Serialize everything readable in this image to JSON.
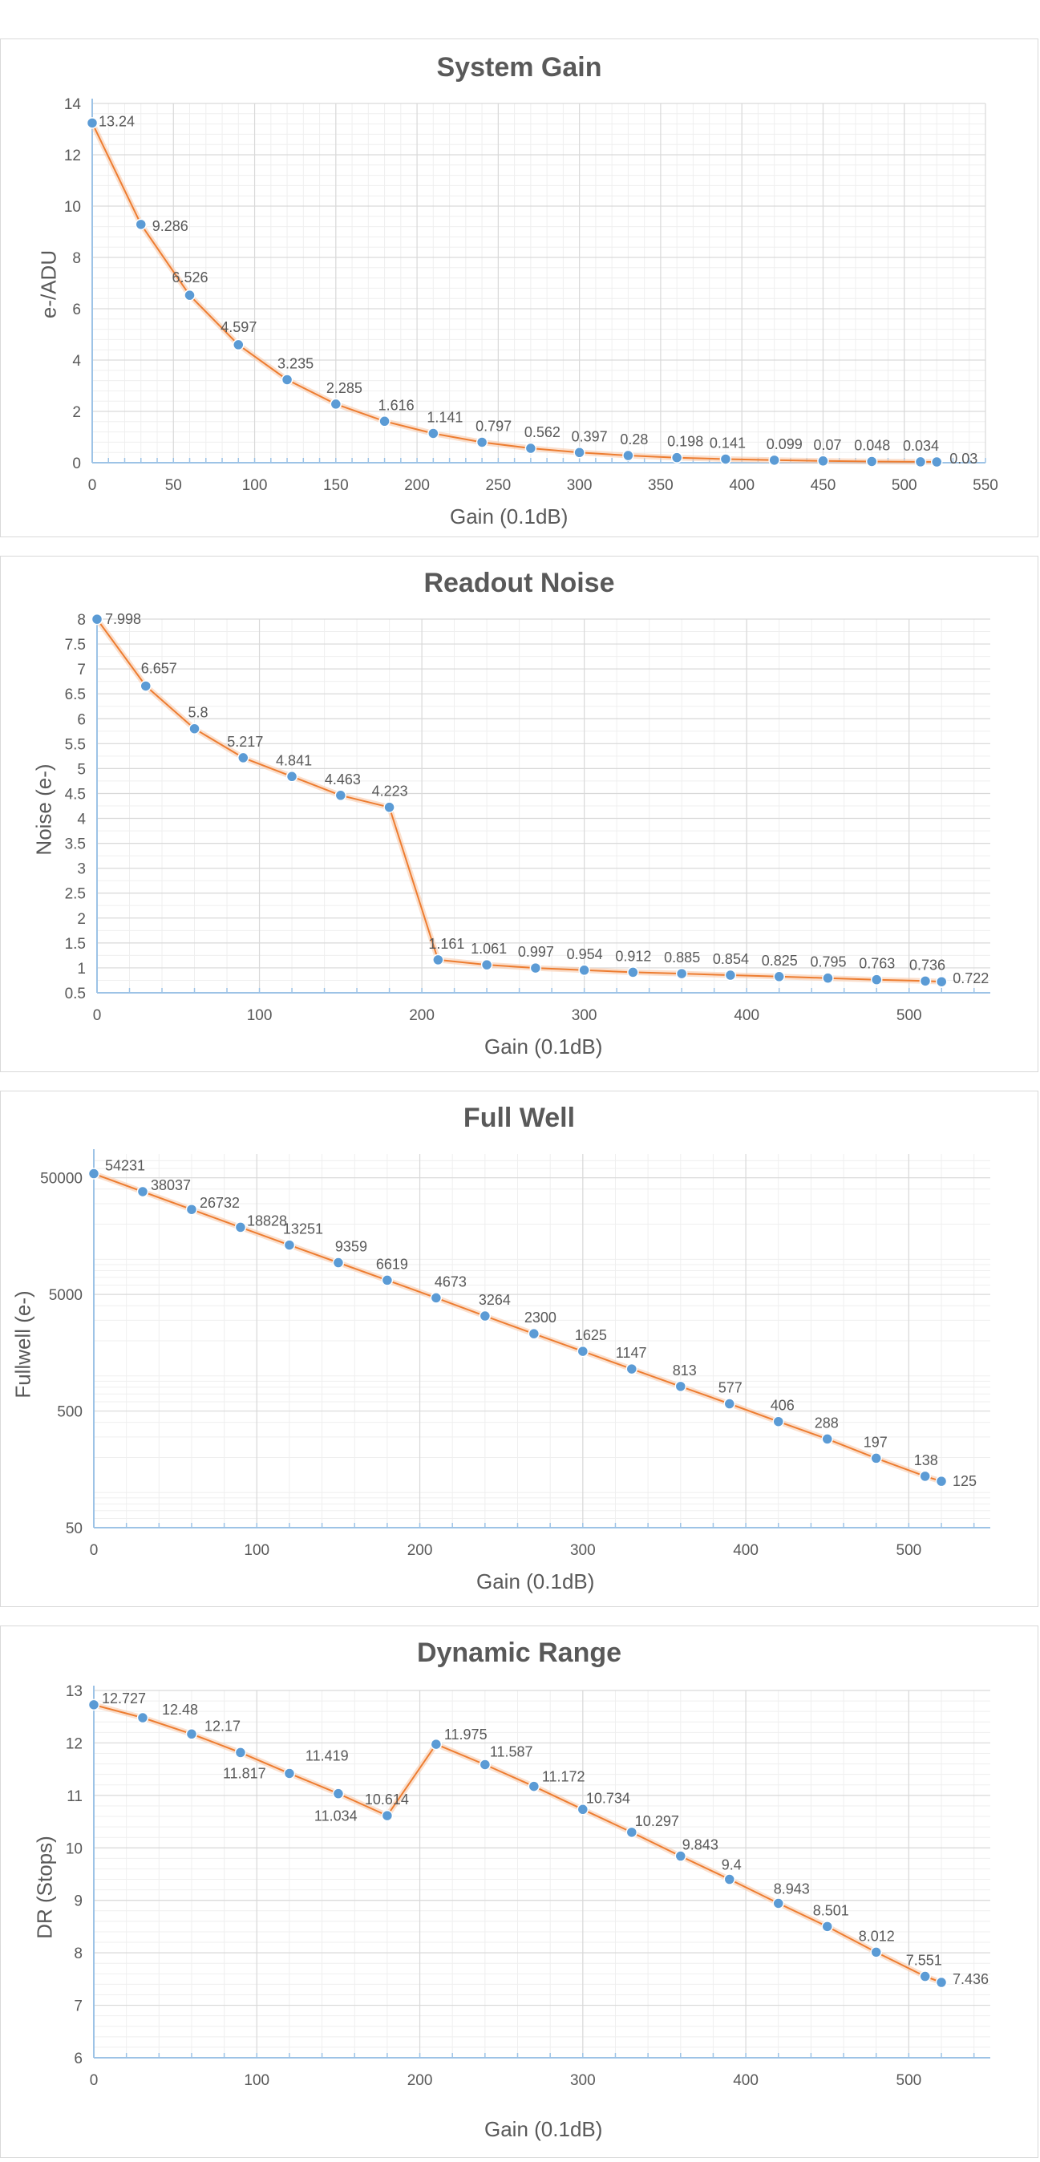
{
  "chart_data": [
    {
      "type": "line",
      "title": "System Gain",
      "xlabel": "Gain (0.1dB)",
      "ylabel": "e-/ADU",
      "xlim": [
        0,
        550
      ],
      "ylim": [
        0,
        14
      ],
      "xticks": [
        0,
        50,
        100,
        150,
        200,
        250,
        300,
        350,
        400,
        450,
        500,
        550
      ],
      "yticks": [
        0,
        2,
        4,
        6,
        8,
        10,
        12,
        14
      ],
      "x": [
        0,
        30,
        60,
        90,
        120,
        150,
        180,
        210,
        240,
        270,
        300,
        330,
        360,
        390,
        420,
        450,
        480,
        510,
        520
      ],
      "y": [
        13.24,
        9.286,
        6.526,
        4.597,
        3.235,
        2.285,
        1.616,
        1.141,
        0.797,
        0.562,
        0.397,
        0.28,
        0.198,
        0.141,
        0.099,
        0.07,
        0.048,
        0.034,
        0.03
      ],
      "labels": [
        "13.24",
        "9.286",
        "6.526",
        "4.597",
        "3.235",
        "2.285",
        "1.616",
        "1.141",
        "0.797",
        "0.562",
        "0.397",
        "0.28",
        "0.198",
        "0.141",
        "0.099",
        "0.07",
        "0.048",
        "0.034",
        "0.03"
      ],
      "grid": true
    },
    {
      "type": "line",
      "title": "Readout Noise",
      "xlabel": "Gain (0.1dB)",
      "ylabel": "Noise (e-)",
      "xlim": [
        0,
        550
      ],
      "ylim": [
        0.5,
        8
      ],
      "xticks": [
        0,
        100,
        200,
        300,
        400,
        500
      ],
      "yticks": [
        0.5,
        1,
        1.5,
        2,
        2.5,
        3,
        3.5,
        4,
        4.5,
        5,
        5.5,
        6,
        6.5,
        7,
        7.5,
        8
      ],
      "x": [
        0,
        30,
        60,
        90,
        120,
        150,
        180,
        210,
        240,
        270,
        300,
        330,
        360,
        390,
        420,
        450,
        480,
        510,
        520
      ],
      "y": [
        7.998,
        6.657,
        5.8,
        5.217,
        4.841,
        4.463,
        4.223,
        1.161,
        1.061,
        0.997,
        0.954,
        0.912,
        0.885,
        0.854,
        0.825,
        0.795,
        0.763,
        0.736,
        0.722
      ],
      "labels": [
        "7.998",
        "6.657",
        "5.8",
        "5.217",
        "4.841",
        "4.463",
        "4.223",
        "1.161",
        "1.061",
        "0.997",
        "0.954",
        "0.912",
        "0.885",
        "0.854",
        "0.825",
        "0.795",
        "0.763",
        "0.736",
        "0.722"
      ],
      "grid": true
    },
    {
      "type": "line",
      "title": "Full Well",
      "xlabel": "Gain (0.1dB)",
      "ylabel": "Fullwell (e-)",
      "xlim": [
        0,
        550
      ],
      "ylim": [
        50,
        80000
      ],
      "yscale": "log",
      "xticks": [
        0,
        100,
        200,
        300,
        400,
        500
      ],
      "yticks": [
        50,
        500,
        5000,
        50000
      ],
      "x": [
        0,
        30,
        60,
        90,
        120,
        150,
        180,
        210,
        240,
        270,
        300,
        330,
        360,
        390,
        420,
        450,
        480,
        510,
        520
      ],
      "y": [
        54231,
        38037,
        26732,
        18828,
        13251,
        9359,
        6619,
        4673,
        3264,
        2300,
        1625,
        1147,
        813,
        577,
        406,
        288,
        197,
        138,
        125
      ],
      "labels": [
        "54231",
        "38037",
        "26732",
        "18828",
        "13251",
        "9359",
        "6619",
        "4673",
        "3264",
        "2300",
        "1625",
        "1147",
        "813",
        "577",
        "406",
        "288",
        "197",
        "138",
        "125"
      ],
      "grid": true
    },
    {
      "type": "line",
      "title": "Dynamic Range",
      "xlabel": "Gain (0.1dB)",
      "ylabel": "DR (Stops)",
      "xlim": [
        0,
        550
      ],
      "ylim": [
        6,
        13
      ],
      "xticks": [
        0,
        100,
        200,
        300,
        400,
        500
      ],
      "yticks": [
        6,
        7,
        8,
        9,
        10,
        11,
        12,
        13
      ],
      "x": [
        0,
        30,
        60,
        90,
        120,
        150,
        180,
        210,
        240,
        270,
        300,
        330,
        360,
        390,
        420,
        450,
        480,
        510,
        520
      ],
      "y": [
        12.727,
        12.48,
        12.17,
        11.817,
        11.419,
        11.034,
        10.614,
        11.975,
        11.587,
        11.172,
        10.734,
        10.297,
        9.843,
        9.4,
        8.943,
        8.501,
        8.012,
        7.551,
        7.436
      ],
      "labels": [
        "12.727",
        "12.48",
        "12.17",
        "11.817",
        "11.419",
        "11.034",
        "10.614",
        "11.975",
        "11.587",
        "11.172",
        "10.734",
        "10.297",
        "9.843",
        "9.4",
        "8.943",
        "8.501",
        "8.012",
        "7.551",
        "7.436"
      ],
      "grid": true
    }
  ],
  "colors": {
    "line": "#ed7d31",
    "marker": "#5b9bd5",
    "axis": "#9dc3e6",
    "grid_major": "#d9d9d9",
    "grid_minor": "#efefef",
    "text": "#595959"
  }
}
